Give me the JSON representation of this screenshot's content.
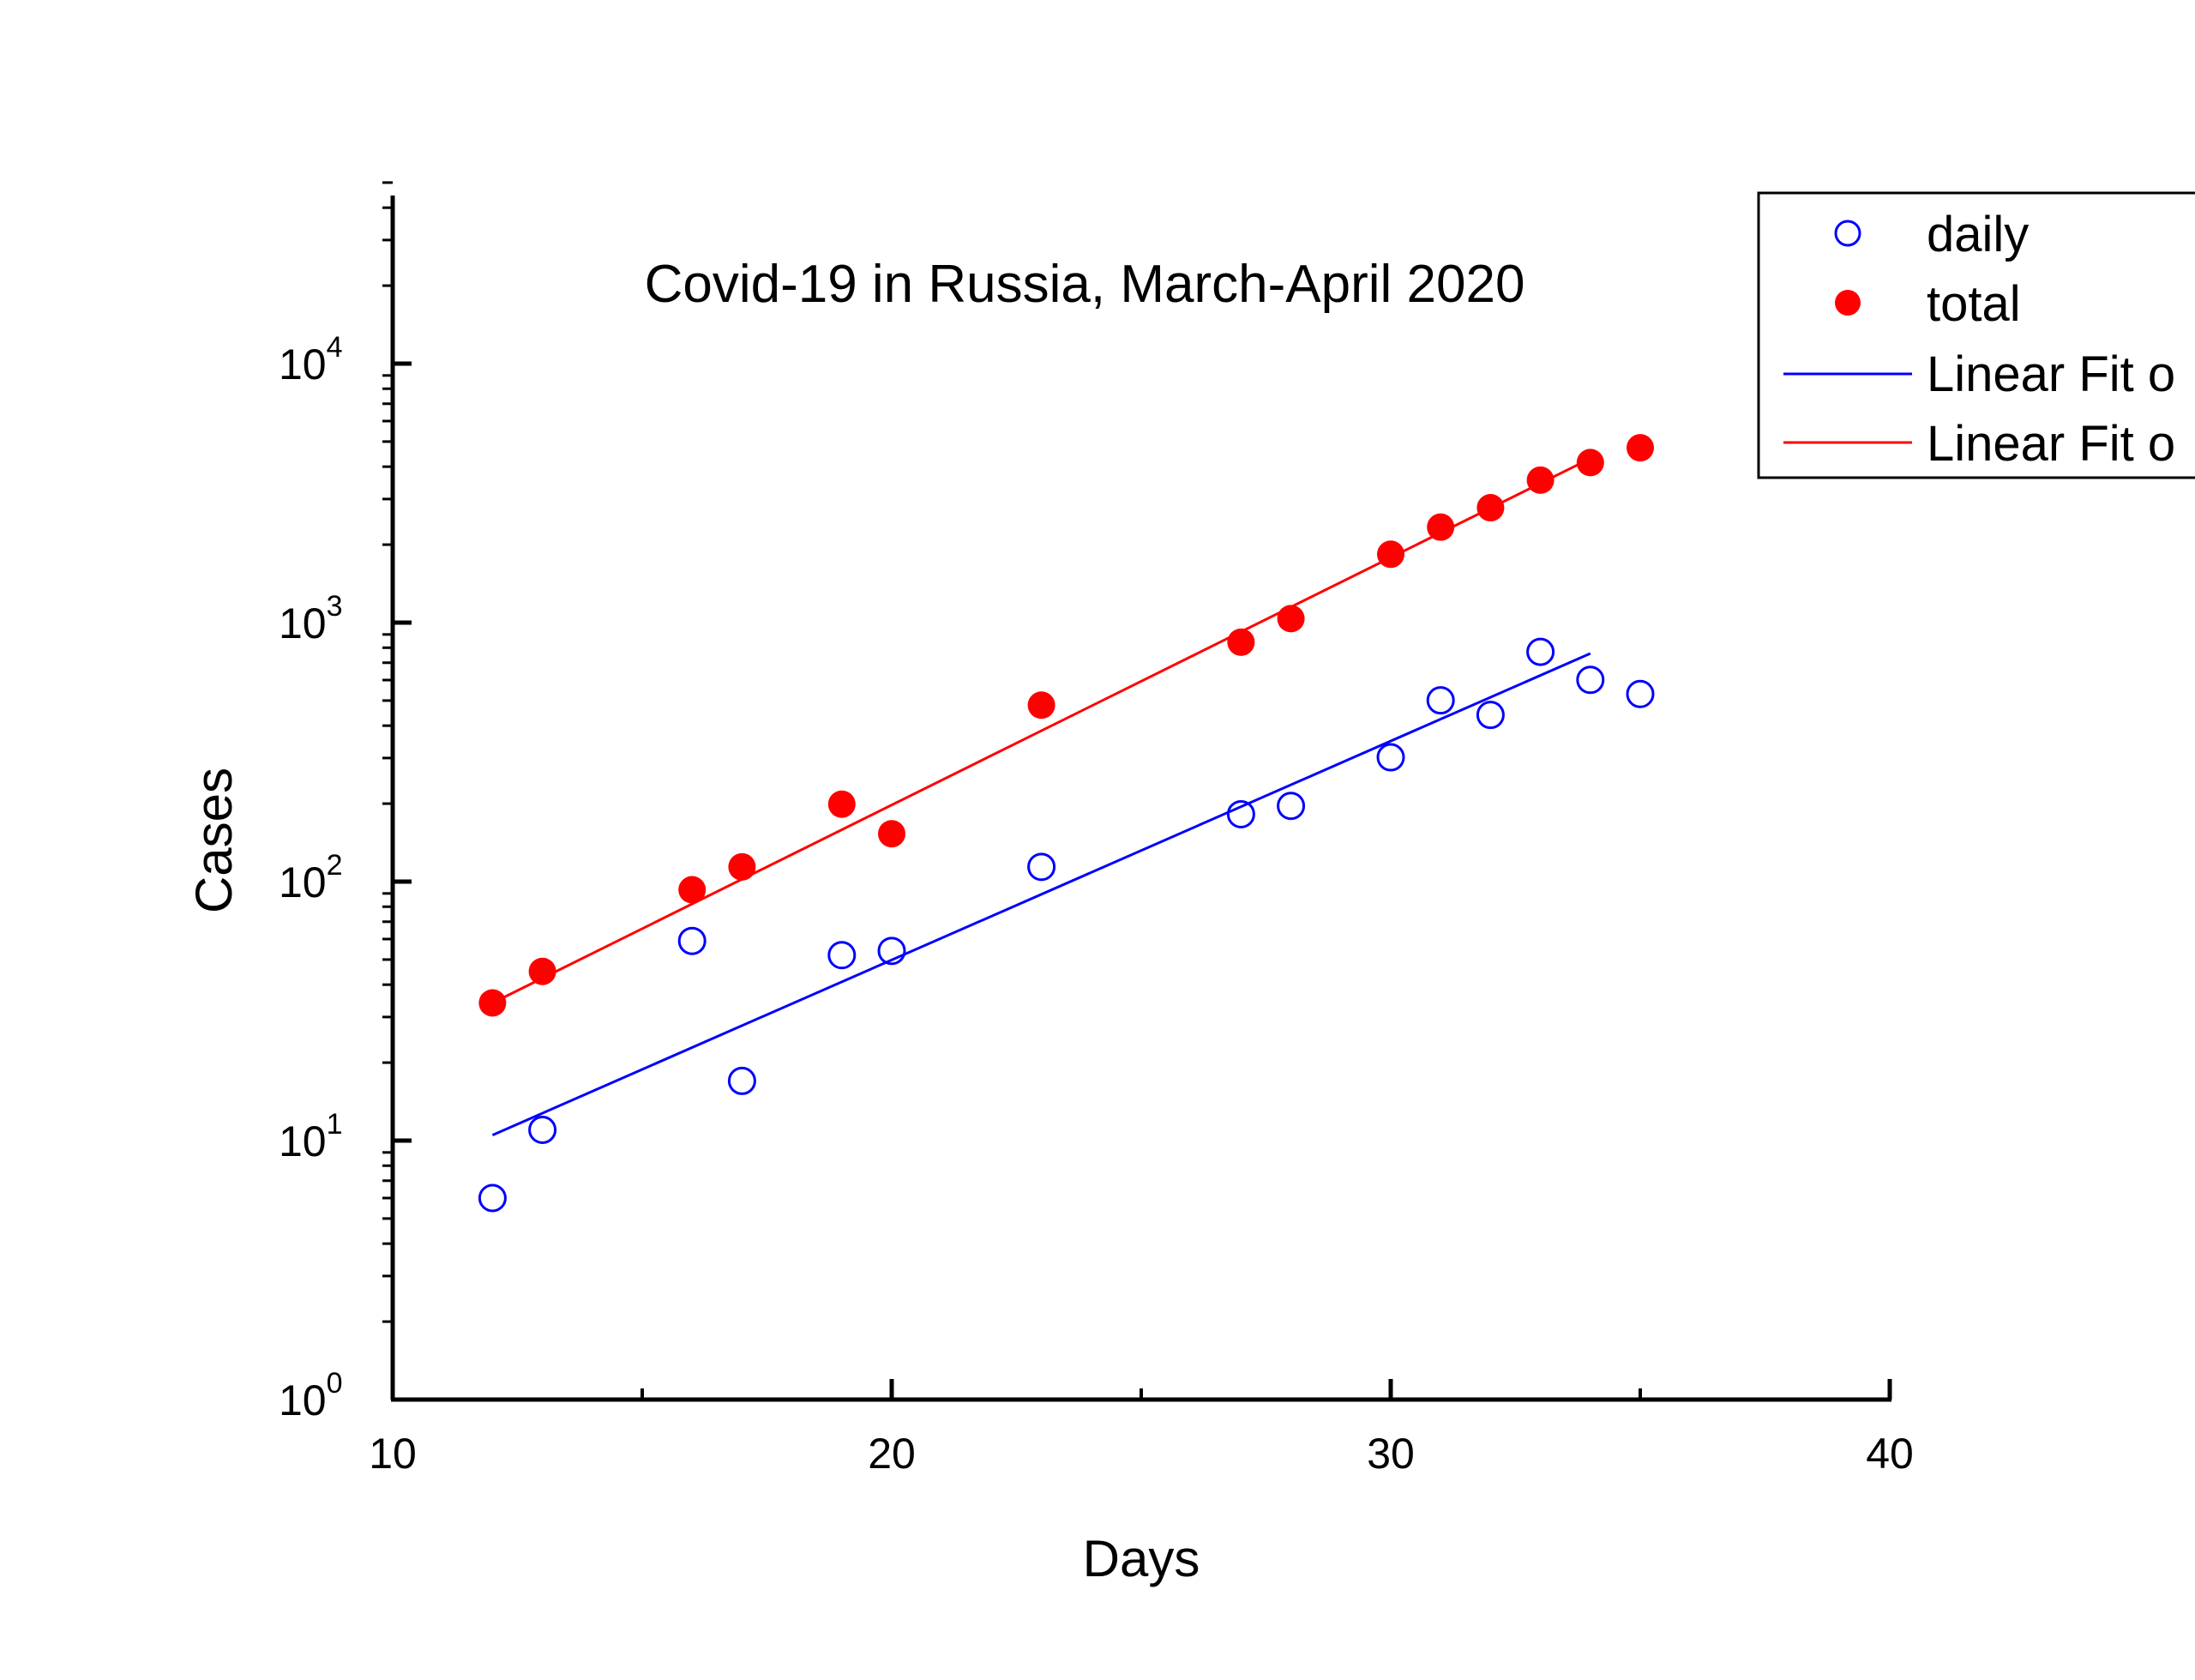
{
  "chart_data": {
    "type": "scatter",
    "title": "Covid-19 in Russia, March-April 2020",
    "xlabel": "Days",
    "ylabel": "Cases",
    "xlim": [
      10,
      40
    ],
    "ylim": [
      1,
      50000
    ],
    "yscale": "log",
    "x_ticks": [
      10,
      20,
      30,
      40
    ],
    "x_minor_ticks": [
      15,
      25,
      35
    ],
    "y_ticks": [
      {
        "base": "10",
        "exp": "0",
        "value": 1
      },
      {
        "base": "10",
        "exp": "1",
        "value": 10
      },
      {
        "base": "10",
        "exp": "2",
        "value": 100
      },
      {
        "base": "10",
        "exp": "3",
        "value": 1000
      },
      {
        "base": "10",
        "exp": "4",
        "value": 10000
      }
    ],
    "grid": false,
    "legend_position": "top-right",
    "series": [
      {
        "name": "daily",
        "kind": "scatter",
        "marker": "open-circle",
        "color": "#0000ff",
        "x": [
          12,
          13,
          16,
          17,
          19,
          20,
          23,
          27,
          28,
          30,
          31,
          32,
          33,
          34,
          35
        ],
        "y": [
          6,
          11,
          59,
          17,
          52,
          54,
          114,
          182,
          196,
          302,
          501,
          440,
          771,
          601,
          530
        ]
      },
      {
        "name": "total",
        "kind": "scatter",
        "marker": "filled-circle",
        "color": "#ff0000",
        "x": [
          12,
          13,
          16,
          17,
          19,
          20,
          23,
          27,
          28,
          30,
          31,
          32,
          33,
          34,
          35
        ],
        "y": [
          34,
          45,
          93,
          114,
          199,
          153,
          480,
          840,
          1036,
          1836,
          2337,
          2777,
          3548,
          4149,
          4731
        ]
      },
      {
        "name": "Linear Fit o",
        "kind": "line",
        "color": "#0000ff",
        "x": [
          12,
          34
        ],
        "y": [
          10.5,
          760
        ]
      },
      {
        "name": "Linear Fit o",
        "kind": "line",
        "color": "#ff0000",
        "x": [
          12,
          34
        ],
        "y": [
          34,
          4300
        ]
      }
    ]
  }
}
